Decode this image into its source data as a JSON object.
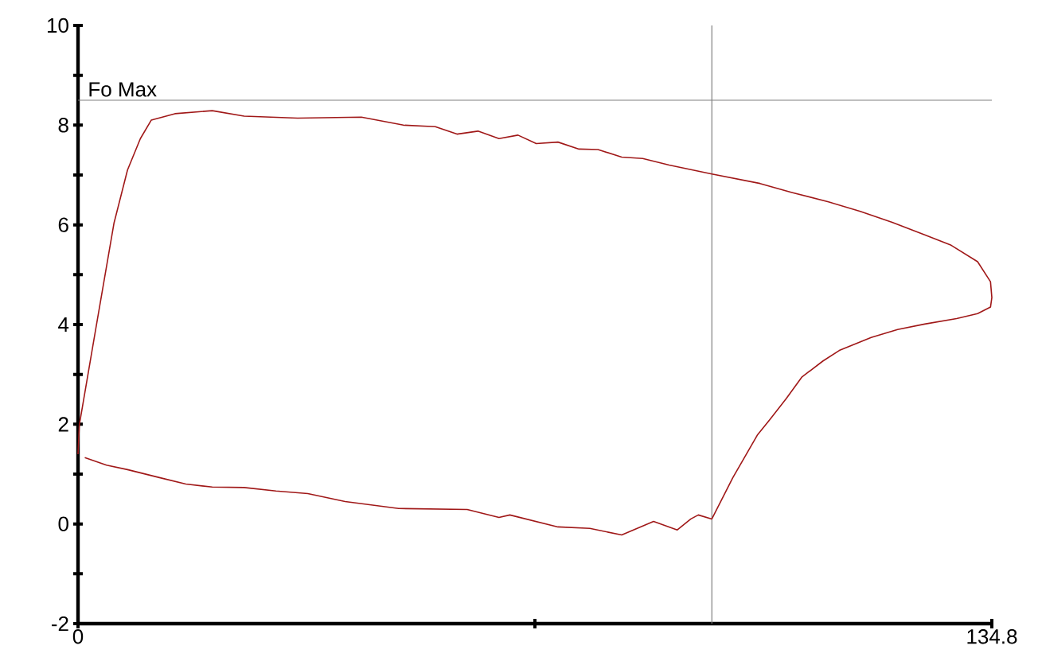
{
  "chart_data": {
    "type": "line",
    "xlim": [
      0,
      134.8
    ],
    "ylim": [
      -2,
      10
    ],
    "xticks": [
      0,
      {
        "value": 67.4,
        "label": null
      },
      134.8
    ],
    "yticks": [
      -2,
      {
        "value": -1,
        "label": null
      },
      0,
      {
        "value": 1,
        "label": null
      },
      2,
      {
        "value": 3,
        "label": null
      },
      4,
      {
        "value": 5,
        "label": null
      },
      6,
      {
        "value": 7,
        "label": null
      },
      8,
      {
        "value": 9,
        "label": null
      },
      10
    ],
    "marker": "none",
    "line_style": "solid",
    "ref_lines": [
      {
        "axis": "y",
        "value": 8.5,
        "label": "Fo Max",
        "color": "#808080"
      },
      {
        "axis": "x",
        "value": 93.5,
        "color": "#808080"
      }
    ],
    "series": [
      {
        "color": "#a01818",
        "x": [
          0,
          0.2,
          2.6,
          5.3,
          7.3,
          9.2,
          10.8,
          14.3,
          19.8,
          24.5,
          32.4,
          41.8,
          48.0,
          52.7,
          55.9,
          59.0,
          62.1,
          64.9,
          67.6,
          70.8,
          73.9,
          76.7,
          80.2,
          83.3,
          87.2,
          93.5,
          100.6,
          105.3,
          110.7,
          115.4,
          120.1,
          124.9,
          128.8,
          132.7,
          134.6,
          134.8,
          134.6,
          132.7,
          129.6,
          124.9,
          120.9,
          117.0,
          112.3,
          109.9,
          106.8,
          104.5,
          102.1,
          100.2,
          96.6,
          93.5,
          91.5,
          90.4,
          88.4,
          84.9,
          80.2,
          75.5,
          70.8,
          63.7,
          62.1,
          57.4,
          47.3,
          39.4,
          33.9,
          29.2,
          24.5,
          19.8,
          15.9,
          12.0,
          7.3,
          4.2,
          1.0
        ],
        "values": [
          1.4,
          1.99,
          3.9,
          6.03,
          7.1,
          7.73,
          8.1,
          8.23,
          8.29,
          8.18,
          8.14,
          8.16,
          8.0,
          7.97,
          7.82,
          7.88,
          7.73,
          7.8,
          7.63,
          7.66,
          7.52,
          7.51,
          7.36,
          7.33,
          7.2,
          7.02,
          6.83,
          6.65,
          6.46,
          6.27,
          6.05,
          5.8,
          5.59,
          5.26,
          4.86,
          4.54,
          4.35,
          4.22,
          4.12,
          4.01,
          3.9,
          3.74,
          3.48,
          3.27,
          2.95,
          2.52,
          2.1,
          1.78,
          0.93,
          0.1,
          0.18,
          0.1,
          -0.12,
          0.05,
          -0.22,
          -0.09,
          -0.06,
          0.18,
          0.13,
          0.29,
          0.31,
          0.45,
          0.61,
          0.66,
          0.73,
          0.74,
          0.8,
          0.93,
          1.09,
          1.18,
          1.33
        ]
      }
    ]
  }
}
